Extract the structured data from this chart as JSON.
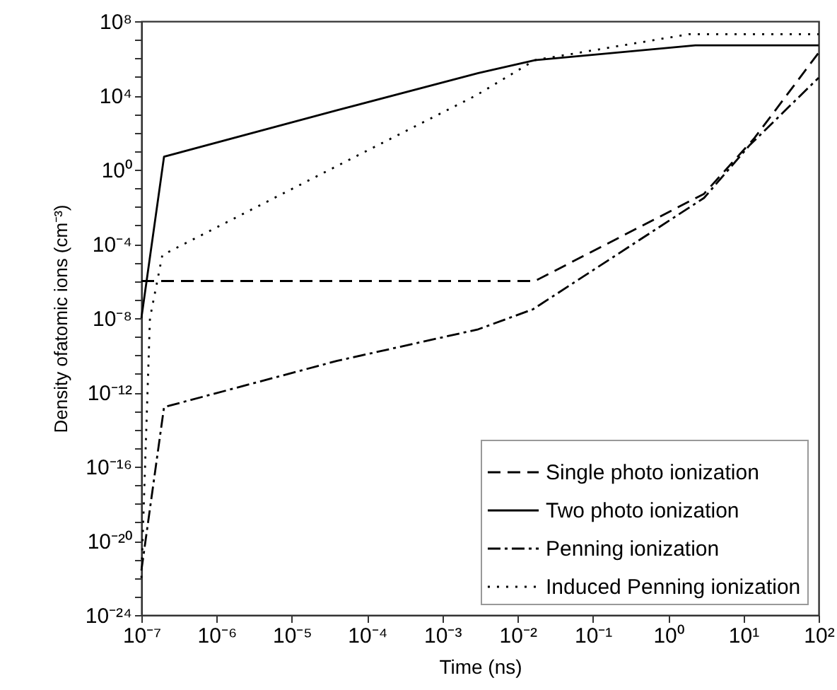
{
  "chart_data": {
    "type": "line",
    "xlabel": "Time (ns)",
    "ylabel": "Density ofatomic ions (cm⁻³)",
    "log": "xy",
    "legend": "bottom right",
    "grid": false,
    "xlim": [
      1e-07,
      100
    ],
    "xticks": [
      {
        "value": 1e-07,
        "label": "10⁻⁷"
      },
      {
        "value": 1e-06,
        "label": "10⁻⁶"
      },
      {
        "value": 1e-05,
        "label": "10⁻⁵"
      },
      {
        "value": 0.0001,
        "label": "10⁻⁴"
      },
      {
        "value": 0.001,
        "label": "10⁻³"
      },
      {
        "value": 0.01,
        "label": "10⁻²"
      },
      {
        "value": 0.1,
        "label": "10⁻¹"
      },
      {
        "value": 1,
        "label": "10⁰"
      },
      {
        "value": 10,
        "label": "10¹"
      },
      {
        "value": 100,
        "label": "10²"
      }
    ],
    "ylim": [
      1e-24,
      100000000.0
    ],
    "yticks": [
      {
        "value": 1e-24,
        "label": "10⁻²⁴"
      },
      {
        "value": 1e-23,
        "label": null
      },
      {
        "value": 1e-22,
        "label": null
      },
      {
        "value": 1e-21,
        "label": null
      },
      {
        "value": 1e-20,
        "label": "10⁻²⁰"
      },
      {
        "value": 1e-19,
        "label": null
      },
      {
        "value": 1e-18,
        "label": null
      },
      {
        "value": 1e-17,
        "label": null
      },
      {
        "value": 1e-16,
        "label": "10⁻¹⁶"
      },
      {
        "value": 1e-15,
        "label": null
      },
      {
        "value": 1e-14,
        "label": null
      },
      {
        "value": 1e-13,
        "label": null
      },
      {
        "value": 1e-12,
        "label": "10⁻¹²"
      },
      {
        "value": 1e-11,
        "label": null
      },
      {
        "value": 1e-10,
        "label": null
      },
      {
        "value": 1e-09,
        "label": null
      },
      {
        "value": 1e-08,
        "label": "10⁻⁸"
      },
      {
        "value": 1e-07,
        "label": null
      },
      {
        "value": 1e-06,
        "label": null
      },
      {
        "value": 1e-05,
        "label": null
      },
      {
        "value": 0.0001,
        "label": "10⁻⁴"
      },
      {
        "value": 0.001,
        "label": null
      },
      {
        "value": 0.01,
        "label": null
      },
      {
        "value": 0.1,
        "label": null
      },
      {
        "value": 1,
        "label": "10⁰"
      },
      {
        "value": 10,
        "label": null
      },
      {
        "value": 100,
        "label": null
      },
      {
        "value": 1000,
        "label": null
      },
      {
        "value": 10000.0,
        "label": "10⁴"
      },
      {
        "value": 100000.0,
        "label": null
      },
      {
        "value": 1000000.0,
        "label": null
      },
      {
        "value": 10000000.0,
        "label": null
      },
      {
        "value": 100000000.0,
        "label": "10⁸"
      }
    ],
    "series": [
      {
        "name": "Single photo ionization",
        "color": "#000000",
        "line_style": "dashed",
        "x": [
          1e-07,
          2e-07,
          0.017,
          3,
          14,
          100
        ],
        "values": [
          1e-06,
          1e-06,
          1e-06,
          0.05,
          50,
          2000000.0
        ]
      },
      {
        "name": "Two photo ionization",
        "color": "#000000",
        "line_style": "solid",
        "x": [
          1e-07,
          2e-07,
          4e-05,
          0.003,
          0.017,
          2.3,
          100
        ],
        "values": [
          1e-08,
          5,
          1600.0,
          160000.0,
          800000.0,
          5000000.0,
          5000000.0
        ]
      },
      {
        "name": "Penning ionization",
        "color": "#000000",
        "line_style": "dashdot",
        "x": [
          1e-07,
          2e-07,
          4e-05,
          0.003,
          0.016,
          3,
          12,
          100
        ],
        "values": [
          2.5e-22,
          1.6e-13,
          5e-11,
          2.5e-09,
          3e-08,
          0.03,
          20,
          90000.0
        ]
      },
      {
        "name": "Induced Penning ionization",
        "color": "#000000",
        "line_style": "dotted",
        "x": [
          1e-07,
          1.3e-07,
          1.9e-07,
          4e-05,
          0.0028,
          0.017,
          1.9,
          100
        ],
        "values": [
          1e-22,
          1e-08,
          2.5e-05,
          1.6,
          10000.0,
          800000.0,
          20000000.0,
          20000000.0
        ]
      }
    ]
  }
}
